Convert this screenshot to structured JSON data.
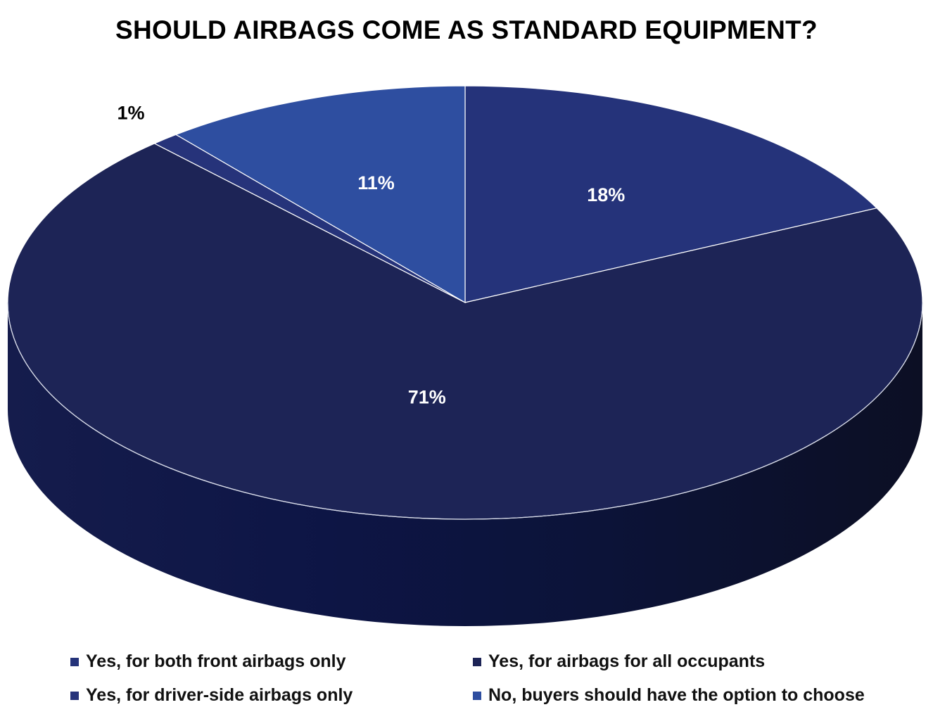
{
  "chart_data": {
    "type": "pie",
    "style": "3d",
    "title": "SHOULD AIRBAGS COME AS STANDARD EQUIPMENT?",
    "legend_position": "bottom",
    "categories": [
      "Yes, for both front airbags only",
      "Yes, for airbags for all occupants",
      "Yes, for driver-side airbags only",
      "No, buyers should have the option to choose"
    ],
    "values": [
      18,
      71,
      1,
      11
    ],
    "labels": [
      "18%",
      "71%",
      "1%",
      "11%"
    ],
    "colors": [
      "#25337a",
      "#1d2456",
      "#26337a",
      "#2e4ea0"
    ]
  }
}
